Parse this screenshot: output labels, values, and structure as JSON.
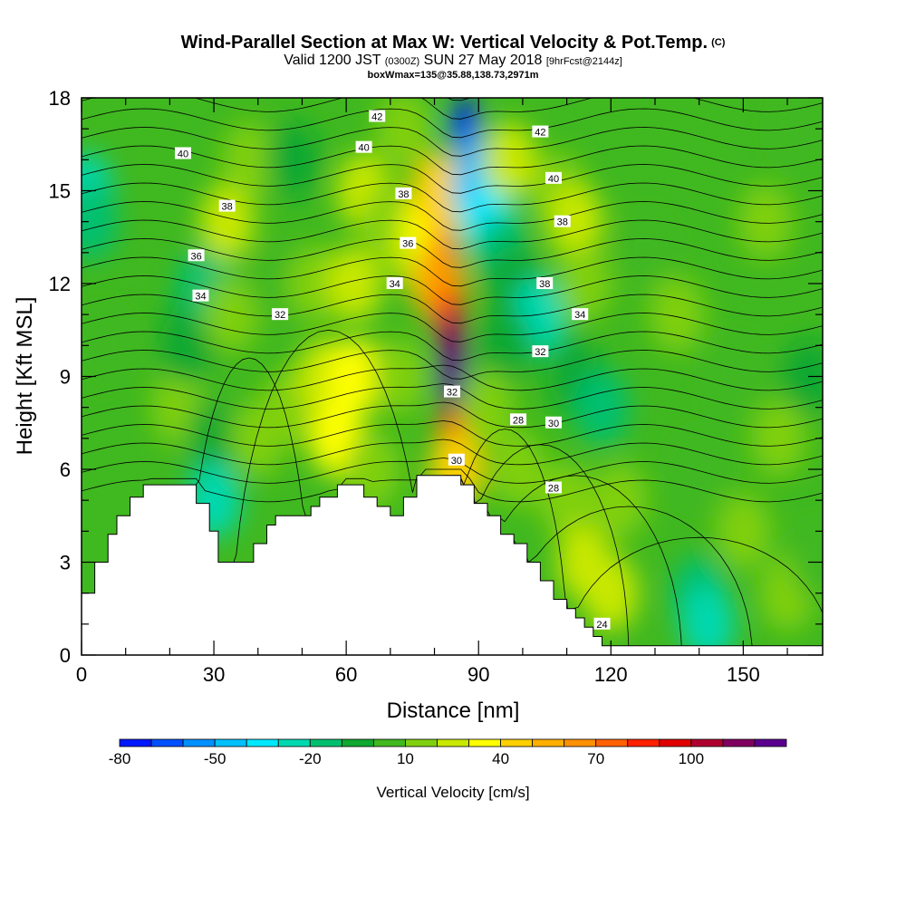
{
  "title": {
    "main": "Wind-Parallel Section at Max W: Vertical Velocity & Pot.Temp.",
    "copyright": "(C)",
    "valid_prefix": "Valid 1200 JST",
    "valid_utc": "(0300Z)",
    "valid_date": "SUN 27 May 2018",
    "forecast": "[9hrFcst@2144z]",
    "box": "boxWmax=135@35.88,138.73,2971m"
  },
  "chart_data": {
    "type": "heatmap",
    "xlabel": "Distance [nm]",
    "ylabel": "Height [Kft MSL]",
    "xlim": [
      0,
      168
    ],
    "ylim": [
      0,
      18
    ],
    "x_ticks": [
      "0",
      "30",
      "60",
      "90",
      "120",
      "150"
    ],
    "x_tick_values": [
      0,
      30,
      60,
      90,
      120,
      150
    ],
    "y_ticks": [
      "0",
      "3",
      "6",
      "9",
      "12",
      "15",
      "18"
    ],
    "y_tick_values": [
      0,
      3,
      6,
      9,
      12,
      15,
      18
    ],
    "colorbar": {
      "label": "Vertical Velocity [cm/s]",
      "tick_labels": [
        "-80",
        "-50",
        "-20",
        "10",
        "40",
        "70",
        "100"
      ],
      "tick_values": [
        -80,
        -50,
        -20,
        10,
        40,
        70,
        100
      ],
      "levels": [
        -80,
        -70,
        -60,
        -50,
        -40,
        -30,
        -20,
        -10,
        0,
        10,
        20,
        30,
        40,
        50,
        60,
        70,
        80,
        90,
        100,
        110,
        120
      ],
      "colors": [
        "#0018ff",
        "#0050ff",
        "#0090ff",
        "#00c0ff",
        "#00e8ff",
        "#00d8b0",
        "#00c070",
        "#10a830",
        "#40b820",
        "#80d010",
        "#c8e800",
        "#ffff00",
        "#ffd000",
        "#ffb000",
        "#ff9000",
        "#ff6000",
        "#ff2000",
        "#e00000",
        "#b00030",
        "#800060",
        "#5a0090"
      ]
    },
    "terrain_heights_kft": [
      [
        0,
        2.0
      ],
      [
        3,
        3.0
      ],
      [
        6,
        3.9
      ],
      [
        8,
        4.5
      ],
      [
        11,
        5.1
      ],
      [
        14,
        5.5
      ],
      [
        23,
        5.5
      ],
      [
        26,
        4.9
      ],
      [
        29,
        4.0
      ],
      [
        31,
        3.0
      ],
      [
        36,
        3.0
      ],
      [
        39,
        3.6
      ],
      [
        42,
        4.2
      ],
      [
        44,
        4.5
      ],
      [
        49,
        4.5
      ],
      [
        52,
        4.8
      ],
      [
        54,
        5.1
      ],
      [
        58,
        5.5
      ],
      [
        61,
        5.5
      ],
      [
        64,
        5.1
      ],
      [
        67,
        4.8
      ],
      [
        70,
        4.5
      ],
      [
        73,
        5.1
      ],
      [
        76,
        5.8
      ],
      [
        84,
        5.8
      ],
      [
        86,
        5.5
      ],
      [
        89,
        4.9
      ],
      [
        92,
        4.5
      ],
      [
        95,
        3.9
      ],
      [
        98,
        3.6
      ],
      [
        101,
        3.0
      ],
      [
        104,
        2.4
      ],
      [
        107,
        1.8
      ],
      [
        110,
        1.5
      ],
      [
        112,
        1.2
      ],
      [
        114,
        0.9
      ],
      [
        116,
        0.6
      ],
      [
        118,
        0.3
      ],
      [
        168,
        0.3
      ]
    ],
    "w_cells": [
      {
        "x": 1,
        "y": 15,
        "w": -30
      },
      {
        "x": 2,
        "y": 14,
        "w": -20
      },
      {
        "x": 5,
        "y": 10,
        "w": 0
      },
      {
        "x": 22,
        "y": 8,
        "w": 10
      },
      {
        "x": 24,
        "y": 10,
        "w": -10
      },
      {
        "x": 26,
        "y": 11,
        "w": -10
      },
      {
        "x": 28,
        "y": 12,
        "w": -20
      },
      {
        "x": 30,
        "y": 7,
        "w": -10
      },
      {
        "x": 30,
        "y": 5,
        "w": -30
      },
      {
        "x": 33,
        "y": 14,
        "w": 20
      },
      {
        "x": 34,
        "y": 11,
        "w": 10
      },
      {
        "x": 38,
        "y": 16,
        "w": 10
      },
      {
        "x": 40,
        "y": 7,
        "w": 10
      },
      {
        "x": 44,
        "y": 12,
        "w": 0
      },
      {
        "x": 47,
        "y": 8,
        "w": 10
      },
      {
        "x": 48,
        "y": 16,
        "w": -10
      },
      {
        "x": 53,
        "y": 12,
        "w": 10
      },
      {
        "x": 55,
        "y": 9,
        "w": 20
      },
      {
        "x": 58,
        "y": 7,
        "w": 30
      },
      {
        "x": 62,
        "y": 9,
        "w": 30
      },
      {
        "x": 62,
        "y": 12,
        "w": 20
      },
      {
        "x": 64,
        "y": 15,
        "w": 20
      },
      {
        "x": 66,
        "y": 6,
        "w": 10
      },
      {
        "x": 70,
        "y": 14,
        "w": 10
      },
      {
        "x": 72,
        "y": 9,
        "w": 10
      },
      {
        "x": 73,
        "y": 17,
        "w": 10
      },
      {
        "x": 76,
        "y": 13,
        "w": 20
      },
      {
        "x": 79,
        "y": 14,
        "w": 30
      },
      {
        "x": 81,
        "y": 15,
        "w": 40
      },
      {
        "x": 81,
        "y": 12,
        "w": 50
      },
      {
        "x": 82,
        "y": 13,
        "w": 60
      },
      {
        "x": 83,
        "y": 11,
        "w": 80
      },
      {
        "x": 84,
        "y": 10,
        "w": 110
      },
      {
        "x": 84,
        "y": 9,
        "w": 120
      },
      {
        "x": 84,
        "y": 7,
        "w": 80
      },
      {
        "x": 85,
        "y": 6,
        "w": 40
      },
      {
        "x": 87,
        "y": 17,
        "w": -80
      },
      {
        "x": 88,
        "y": 16,
        "w": -60
      },
      {
        "x": 90,
        "y": 15,
        "w": -50
      },
      {
        "x": 92,
        "y": 14,
        "w": -40
      },
      {
        "x": 95,
        "y": 13,
        "w": -20
      },
      {
        "x": 98,
        "y": 12,
        "w": -10
      },
      {
        "x": 104,
        "y": 11,
        "w": -30
      },
      {
        "x": 96,
        "y": 10,
        "w": -10
      },
      {
        "x": 92,
        "y": 8,
        "w": 10
      },
      {
        "x": 99,
        "y": 6,
        "w": 10
      },
      {
        "x": 97,
        "y": 16,
        "w": 20
      },
      {
        "x": 108,
        "y": 15,
        "w": 10
      },
      {
        "x": 112,
        "y": 14,
        "w": 20
      },
      {
        "x": 114,
        "y": 12,
        "w": 10
      },
      {
        "x": 112,
        "y": 9,
        "w": -10
      },
      {
        "x": 118,
        "y": 8,
        "w": -20
      },
      {
        "x": 110,
        "y": 5,
        "w": 10
      },
      {
        "x": 114,
        "y": 3,
        "w": 20
      },
      {
        "x": 122,
        "y": 5,
        "w": 10
      },
      {
        "x": 120,
        "y": 2,
        "w": 20
      },
      {
        "x": 128,
        "y": 13,
        "w": 0
      },
      {
        "x": 135,
        "y": 11,
        "w": 10
      },
      {
        "x": 140,
        "y": 6,
        "w": 0
      },
      {
        "x": 140,
        "y": 2,
        "w": -20
      },
      {
        "x": 142,
        "y": 1,
        "w": -30
      },
      {
        "x": 148,
        "y": 9,
        "w": 0
      },
      {
        "x": 150,
        "y": 4,
        "w": 10
      },
      {
        "x": 155,
        "y": 14,
        "w": 10
      },
      {
        "x": 158,
        "y": 7,
        "w": 10
      },
      {
        "x": 160,
        "y": 2,
        "w": 10
      },
      {
        "x": 163,
        "y": 17,
        "w": 0
      },
      {
        "x": 165,
        "y": 9,
        "w": -10
      },
      {
        "x": 167,
        "y": 3,
        "w": 0
      }
    ],
    "theta_contour_labels": [
      {
        "text": "42",
        "x": 67,
        "y": 17.4
      },
      {
        "text": "42",
        "x": 104,
        "y": 16.9
      },
      {
        "text": "40",
        "x": 23,
        "y": 16.2
      },
      {
        "text": "40",
        "x": 64,
        "y": 16.4
      },
      {
        "text": "40",
        "x": 107,
        "y": 15.4
      },
      {
        "text": "38",
        "x": 33,
        "y": 14.5
      },
      {
        "text": "38",
        "x": 73,
        "y": 14.9
      },
      {
        "text": "38",
        "x": 109,
        "y": 14.0
      },
      {
        "text": "36",
        "x": 26,
        "y": 12.9
      },
      {
        "text": "36",
        "x": 74,
        "y": 13.3
      },
      {
        "text": "34",
        "x": 27,
        "y": 11.6
      },
      {
        "text": "34",
        "x": 71,
        "y": 12.0
      },
      {
        "text": "34",
        "x": 113,
        "y": 11.0
      },
      {
        "text": "38",
        "x": 105,
        "y": 12.0
      },
      {
        "text": "32",
        "x": 45,
        "y": 11.0
      },
      {
        "text": "32",
        "x": 104,
        "y": 9.8
      },
      {
        "text": "32",
        "x": 84,
        "y": 8.5
      },
      {
        "text": "30",
        "x": 85,
        "y": 6.3
      },
      {
        "text": "30",
        "x": 107,
        "y": 7.5
      },
      {
        "text": "28",
        "x": 99,
        "y": 7.6
      },
      {
        "text": "28",
        "x": 107,
        "y": 5.4
      },
      {
        "text": "24",
        "x": 118,
        "y": 1.0
      }
    ]
  }
}
